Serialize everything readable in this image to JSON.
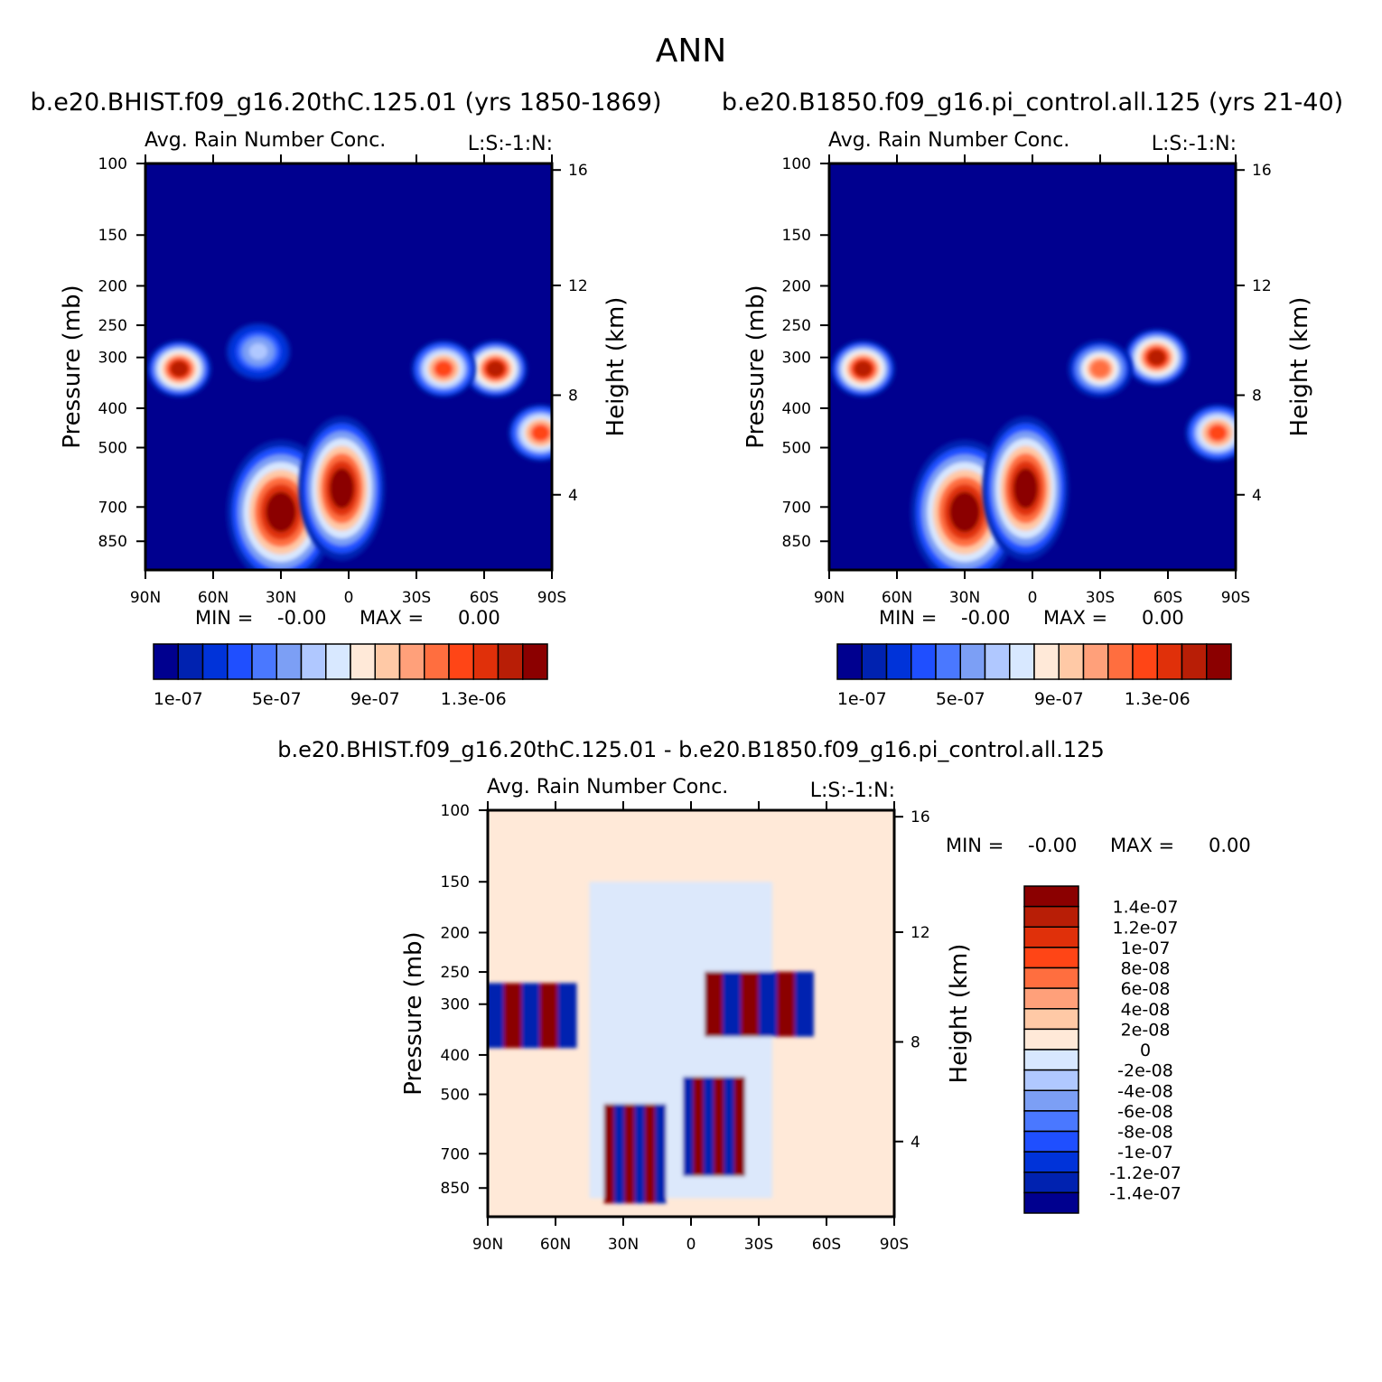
{
  "figure": {
    "season": "ANN",
    "case1_title": "b.e20.BHIST.f09_g16.20thC.125.01 (yrs 1850-1869)",
    "case2_title": "b.e20.B1850.f09_g16.pi_control.all.125 (yrs 21-40)",
    "diff_title": "b.e20.BHIST.f09_g16.20thC.125.01 - b.e20.B1850.f09_g16.pi_control.all.125"
  },
  "chart_data": [
    {
      "type": "heatmap",
      "panel": "case1",
      "title": "Avg. Rain Number Conc.",
      "title_right": "L:S:-1:N:",
      "ylabel": "Pressure (mb)",
      "ylabel_right": "Height (km)",
      "x_ticks": [
        "90N",
        "60N",
        "30N",
        "0",
        "30S",
        "60S",
        "90S"
      ],
      "y_ticks": [
        "100",
        "150",
        "200",
        "250",
        "300",
        "400",
        "500",
        "700",
        "850"
      ],
      "y_ticks_right": [
        "16",
        "12",
        "8",
        "4"
      ],
      "ylim": [
        100,
        1000
      ],
      "stats": {
        "min_label": "MIN =",
        "min_value": "-0.00",
        "max_label": "MAX =",
        "max_value": "0.00"
      },
      "colorbar": {
        "labels": [
          "1e-07",
          "5e-07",
          "9e-07",
          "1.3e-06"
        ],
        "colors": [
          "#00008f",
          "#0022b0",
          "#0033d9",
          "#1f4fff",
          "#4a78ff",
          "#7c9ff5",
          "#b0c8ff",
          "#d8e8ff",
          "#ffe9d8",
          "#ffc9a6",
          "#ffa07a",
          "#ff6e3f",
          "#ff4516",
          "#e0300a",
          "#b81e06",
          "#8b0000"
        ]
      },
      "background": "#00008f",
      "features": [
        {
          "lat": 30,
          "p": 720,
          "value": 1.5e-06
        },
        {
          "lat": 3,
          "p": 630,
          "value": 1.5e-06
        },
        {
          "lat": -65,
          "p": 320,
          "value": 1.4e-06
        },
        {
          "lat": -42,
          "p": 320,
          "value": 1.2e-06
        },
        {
          "lat": 75,
          "p": 320,
          "value": 1.4e-06
        },
        {
          "lat": 40,
          "p": 290,
          "value": 6e-07
        },
        {
          "lat": -85,
          "p": 460,
          "value": 1.2e-06
        }
      ]
    },
    {
      "type": "heatmap",
      "panel": "case2",
      "title": "Avg. Rain Number Conc.",
      "title_right": "L:S:-1:N:",
      "ylabel": "Pressure (mb)",
      "ylabel_right": "Height (km)",
      "x_ticks": [
        "90N",
        "60N",
        "30N",
        "0",
        "30S",
        "60S",
        "90S"
      ],
      "y_ticks": [
        "100",
        "150",
        "200",
        "250",
        "300",
        "400",
        "500",
        "700",
        "850"
      ],
      "y_ticks_right": [
        "16",
        "12",
        "8",
        "4"
      ],
      "ylim": [
        100,
        1000
      ],
      "stats": {
        "min_label": "MIN =",
        "min_value": "-0.00",
        "max_label": "MAX =",
        "max_value": "0.00"
      },
      "colorbar": {
        "labels": [
          "1e-07",
          "5e-07",
          "9e-07",
          "1.3e-06"
        ],
        "colors": [
          "#00008f",
          "#0022b0",
          "#0033d9",
          "#1f4fff",
          "#4a78ff",
          "#7c9ff5",
          "#b0c8ff",
          "#d8e8ff",
          "#ffe9d8",
          "#ffc9a6",
          "#ffa07a",
          "#ff6e3f",
          "#ff4516",
          "#e0300a",
          "#b81e06",
          "#8b0000"
        ]
      },
      "background": "#00008f",
      "features": [
        {
          "lat": 30,
          "p": 720,
          "value": 1.5e-06
        },
        {
          "lat": 3,
          "p": 630,
          "value": 1.5e-06
        },
        {
          "lat": -55,
          "p": 300,
          "value": 1.4e-06
        },
        {
          "lat": -30,
          "p": 320,
          "value": 1.1e-06
        },
        {
          "lat": 75,
          "p": 320,
          "value": 1.4e-06
        },
        {
          "lat": -82,
          "p": 460,
          "value": 1.2e-06
        }
      ]
    },
    {
      "type": "heatmap",
      "panel": "difference",
      "title": "Avg. Rain Number Conc.",
      "title_right": "L:S:-1:N:",
      "ylabel": "Pressure (mb)",
      "ylabel_right": "Height (km)",
      "x_ticks": [
        "90N",
        "60N",
        "30N",
        "0",
        "30S",
        "60S",
        "90S"
      ],
      "y_ticks": [
        "100",
        "150",
        "200",
        "250",
        "300",
        "400",
        "500",
        "700",
        "850"
      ],
      "y_ticks_right": [
        "16",
        "12",
        "8",
        "4"
      ],
      "ylim": [
        100,
        1000
      ],
      "stats": {
        "min_label": "MIN =",
        "min_value": "-0.00",
        "max_label": "MAX =",
        "max_value": "0.00"
      },
      "colorbar": {
        "labels": [
          "1.4e-07",
          "1.2e-07",
          "1e-07",
          "8e-08",
          "6e-08",
          "4e-08",
          "2e-08",
          "0",
          "-2e-08",
          "-4e-08",
          "-6e-08",
          "-8e-08",
          "-1e-07",
          "-1.2e-07",
          "-1.4e-07"
        ],
        "colors": [
          "#8b0000",
          "#b81e06",
          "#e0300a",
          "#ff4516",
          "#ff6e3f",
          "#ffa07a",
          "#ffc9a6",
          "#ffe9d8",
          "#d8e8ff",
          "#b0c8ff",
          "#7c9ff5",
          "#4a78ff",
          "#1f4fff",
          "#0033d9",
          "#0022b0",
          "#00008f"
        ]
      },
      "background": "#ffe9d8",
      "features": [
        {
          "lat": 75,
          "p": 320,
          "value": 1.4e-07
        },
        {
          "lat": -30,
          "p": 300,
          "value": 1.4e-07
        },
        {
          "lat": 25,
          "p": 700,
          "value": 1.4e-07
        },
        {
          "lat": -10,
          "p": 600,
          "value": -1.4e-07
        },
        {
          "lat": 5,
          "p": 200,
          "value": -2e-08
        }
      ]
    }
  ]
}
